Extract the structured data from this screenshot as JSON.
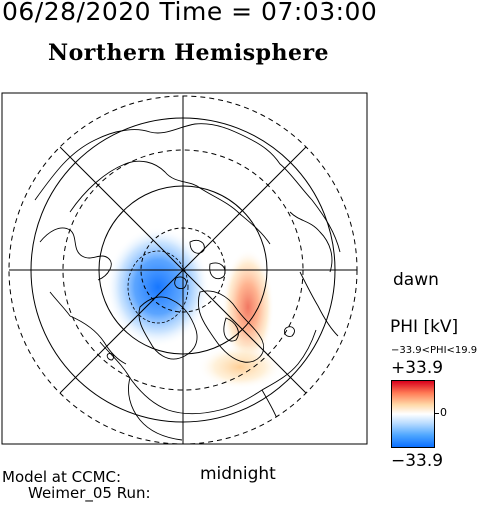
{
  "header": {
    "timestamp": "06/28/2020 Time = 07:03:00",
    "hemisphere": "Northern Hemisphere"
  },
  "map": {
    "dawn_label": "dawn",
    "midnight_label": "midnight",
    "coastline_color": "#000000",
    "grid_color": "#000000"
  },
  "colorbar": {
    "title": "PHI [kV]",
    "range_text": "−33.9<PHI<19.9",
    "max_label": "+33.9",
    "zero_label": "0",
    "min_label": "−33.9",
    "max_color": "#d9001c",
    "mid_color": "#ffffff",
    "min_color": "#0a6fff",
    "icon": "colorbar-gradient"
  },
  "footer": {
    "credit_line_1": "Model at CCMC:",
    "credit_line_2": "Weimer_05 Run:"
  }
}
